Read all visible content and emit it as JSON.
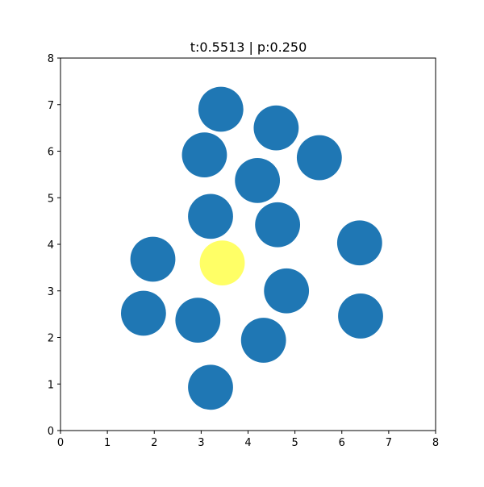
{
  "chart_data": {
    "type": "scatter",
    "title": "t:0.5513 | p:0.250",
    "xlabel": "",
    "ylabel": "",
    "xlim": [
      0,
      8
    ],
    "ylim": [
      0,
      8
    ],
    "xticks": [
      "0",
      "1",
      "2",
      "3",
      "4",
      "5",
      "6",
      "7",
      "8"
    ],
    "yticks": [
      "0",
      "1",
      "2",
      "3",
      "4",
      "5",
      "6",
      "7",
      "8"
    ],
    "grid": false,
    "marker_radius": 0.48,
    "colors": {
      "default": "#1f77b4",
      "highlight": "#ffff66"
    },
    "points": [
      {
        "x": 3.42,
        "y": 6.9,
        "highlight": false
      },
      {
        "x": 4.6,
        "y": 6.5,
        "highlight": false
      },
      {
        "x": 3.07,
        "y": 5.92,
        "highlight": false
      },
      {
        "x": 5.52,
        "y": 5.86,
        "highlight": false
      },
      {
        "x": 4.2,
        "y": 5.37,
        "highlight": false
      },
      {
        "x": 3.2,
        "y": 4.6,
        "highlight": false
      },
      {
        "x": 4.63,
        "y": 4.42,
        "highlight": false
      },
      {
        "x": 6.38,
        "y": 4.03,
        "highlight": false
      },
      {
        "x": 1.97,
        "y": 3.68,
        "highlight": false
      },
      {
        "x": 3.45,
        "y": 3.6,
        "highlight": true
      },
      {
        "x": 4.82,
        "y": 3.0,
        "highlight": false
      },
      {
        "x": 1.77,
        "y": 2.52,
        "highlight": false
      },
      {
        "x": 2.93,
        "y": 2.37,
        "highlight": false
      },
      {
        "x": 6.4,
        "y": 2.46,
        "highlight": false
      },
      {
        "x": 4.33,
        "y": 1.94,
        "highlight": false
      },
      {
        "x": 3.2,
        "y": 0.93,
        "highlight": false
      }
    ]
  }
}
